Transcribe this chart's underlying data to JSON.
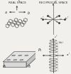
{
  "title_left": "REAL SPACE",
  "title_right": "RECIPROCAL SPACE",
  "bg_color": "#f2f0ec",
  "line_color": "#666666",
  "dark_color": "#333333",
  "fig_width": 1.0,
  "fig_height": 1.04
}
